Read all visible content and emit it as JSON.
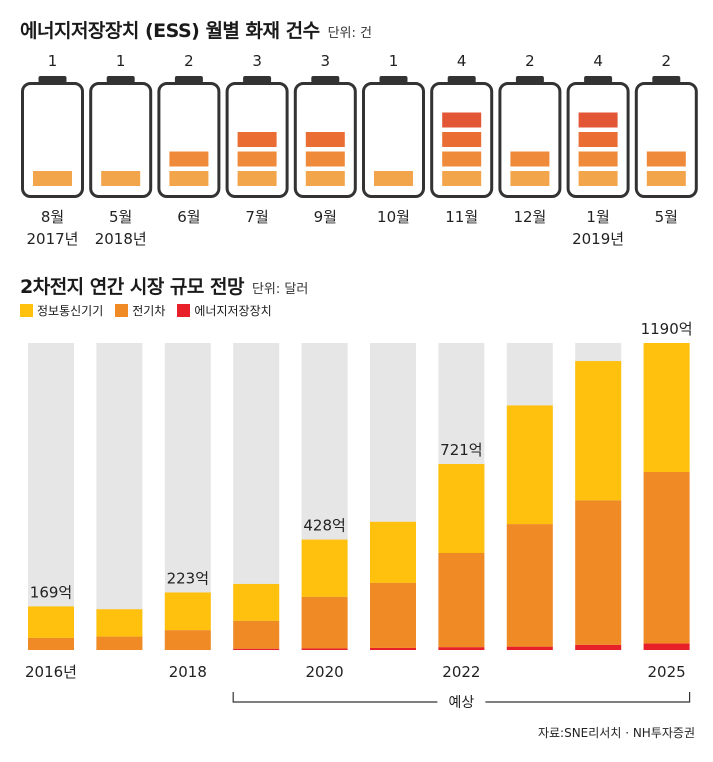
{
  "section1": {
    "title": "에너지저장장치 (ESS) 월별 화재 건수",
    "unit": "단위: 건"
  },
  "section2": {
    "title": "2차전지 연간 시장 규모 전망",
    "unit": "단위: 달러"
  },
  "source": "자료:SNE리서치 · NH투자증권",
  "colors": {
    "it": "#ffc10e",
    "ev": "#f08a24",
    "ess": "#e8202a",
    "battery_outline": "#333333",
    "fire_block_1": "#f2a54a",
    "fire_block_2": "#ef8a3a",
    "fire_block_3": "#ea6d34",
    "fire_block_4": "#e25535",
    "bar_background": "#e6e6e6"
  },
  "chart_data": [
    {
      "type": "bar",
      "title": "에너지저장장치 (ESS) 월별 화재 건수",
      "unit": "단위: 건",
      "categories": [
        "8월\n2017년",
        "5월\n2018년",
        "6월",
        "7월",
        "9월",
        "10월",
        "11월",
        "12월",
        "1월\n2019년",
        "5월"
      ],
      "values": [
        1,
        1,
        2,
        3,
        3,
        1,
        4,
        2,
        4,
        2
      ]
    },
    {
      "type": "bar",
      "stacked": true,
      "title": "2차전지 연간 시장 규모 전망",
      "unit": "단위: 달러",
      "categories": [
        "2016년",
        "",
        "2018",
        "",
        "2020",
        "",
        "2022",
        "",
        "",
        "2025"
      ],
      "series": [
        {
          "name": "에너지저장장치",
          "values": [
            0,
            0,
            0,
            5,
            6,
            8,
            11,
            13,
            20,
            25
          ]
        },
        {
          "name": "전기차",
          "values": [
            47,
            52,
            77,
            108,
            200,
            252,
            365,
            475,
            560,
            665
          ]
        },
        {
          "name": "정보통신기기",
          "values": [
            122,
            106,
            146,
            143,
            222,
            237,
            345,
            460,
            540,
            500
          ]
        }
      ],
      "totals_labeled": {
        "2016년": "169억",
        "2018": "223억",
        "2020": "428억",
        "2022": "721억",
        "2025": "1190억"
      },
      "ylim": [
        0,
        1190
      ],
      "forecast_label": "예상",
      "legend_position": "top-left"
    }
  ]
}
